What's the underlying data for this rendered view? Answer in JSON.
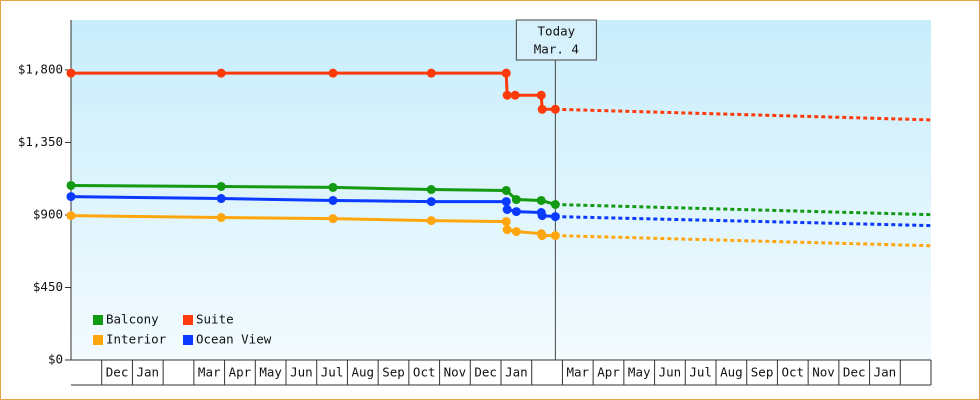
{
  "chart_data": {
    "type": "line",
    "xlim": [
      0,
      28
    ],
    "ylim": [
      0,
      2110
    ],
    "yticks": [
      {
        "value": 0,
        "label": "$0"
      },
      {
        "value": 450,
        "label": "$450"
      },
      {
        "value": 900,
        "label": "$900"
      },
      {
        "value": 1350,
        "label": "$1,350"
      },
      {
        "value": 1800,
        "label": "$1,800"
      }
    ],
    "categories": [
      null,
      "Dec",
      "Jan",
      null,
      "Mar",
      "Apr",
      "May",
      "Jun",
      "Jul",
      "Aug",
      "Sep",
      "Oct",
      "Nov",
      "Dec",
      "Jan",
      null,
      "Mar",
      "Apr",
      "May",
      "Jun",
      "Jul",
      "Aug",
      "Sep",
      "Oct",
      "Nov",
      "Dec",
      "Jan",
      null
    ],
    "annotation": {
      "x": 15.77,
      "lines": [
        "Today",
        "Mar. 4"
      ]
    },
    "legend": "lower left",
    "series": [
      {
        "name": "Balcony",
        "color": "#139a13",
        "x": [
          0,
          4.89,
          8.53,
          11.73,
          14.17,
          14.5,
          15.31,
          15.77
        ],
        "values": [
          1083,
          1077,
          1071,
          1058,
          1052,
          996,
          990,
          965
        ],
        "forecast_x": [
          15.77,
          28
        ],
        "forecast_values": [
          965,
          902
        ]
      },
      {
        "name": "Suite",
        "color": "#ff3a0a",
        "x": [
          0,
          4.89,
          8.53,
          11.73,
          14.17,
          14.2,
          14.46,
          15.31,
          15.34,
          15.77
        ],
        "values": [
          1780,
          1780,
          1780,
          1780,
          1780,
          1643,
          1643,
          1643,
          1556,
          1556
        ],
        "forecast_x": [
          15.77,
          28
        ],
        "forecast_values": [
          1556,
          1490
        ]
      },
      {
        "name": "Interior",
        "color": "#ffa60f",
        "x": [
          0,
          4.89,
          8.53,
          11.73,
          14.17,
          14.2,
          14.5,
          15.31,
          15.34,
          15.77
        ],
        "values": [
          896,
          884,
          877,
          865,
          859,
          809,
          797,
          784,
          772,
          772
        ],
        "forecast_x": [
          15.77,
          28
        ],
        "forecast_values": [
          772,
          709
        ]
      },
      {
        "name": "Ocean View",
        "color": "#0a3aff",
        "x": [
          0,
          4.89,
          8.53,
          11.73,
          14.17,
          14.2,
          14.5,
          15.31,
          15.34,
          15.77
        ],
        "values": [
          1014,
          1002,
          990,
          983,
          983,
          934,
          921,
          915,
          896,
          890
        ],
        "forecast_x": [
          15.77,
          28
        ],
        "forecast_values": [
          890,
          834
        ]
      }
    ]
  }
}
